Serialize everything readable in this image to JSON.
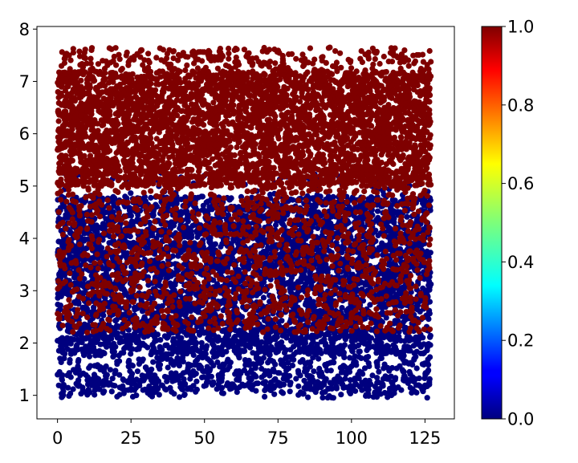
{
  "chart_data": {
    "type": "scatter",
    "title": "",
    "xlabel": "",
    "ylabel": "",
    "xlim": [
      -7,
      135
    ],
    "ylim": [
      0.55,
      8.05
    ],
    "x_ticks": [
      0,
      25,
      50,
      75,
      100,
      125
    ],
    "x_tick_labels": [
      "0",
      "25",
      "50",
      "75",
      "100",
      "125"
    ],
    "y_ticks": [
      1,
      2,
      3,
      4,
      5,
      6,
      7,
      8
    ],
    "y_tick_labels": [
      "1",
      "2",
      "3",
      "4",
      "5",
      "6",
      "7",
      "8"
    ],
    "x_range": [
      0,
      127
    ],
    "grid": false,
    "legend": "none",
    "colormap": "jet",
    "colorbar": {
      "min": 0.0,
      "max": 1.0,
      "ticks": [
        0.0,
        0.2,
        0.4,
        0.6,
        0.8,
        1.0
      ],
      "tick_labels": [
        "0.0",
        "0.2",
        "0.4",
        "0.6",
        "0.8",
        "1.0"
      ]
    },
    "series": [
      {
        "value": 0.0,
        "color": "#00007f",
        "y_distribution": {
          "min": 0.95,
          "max": 5.3,
          "dense_range": [
            1.8,
            4.8
          ]
        }
      },
      {
        "value": 1.0,
        "color": "#7f0000",
        "y_distribution": {
          "min": 1.8,
          "max": 7.65,
          "dense_range": [
            5.0,
            7.2
          ]
        }
      }
    ]
  }
}
